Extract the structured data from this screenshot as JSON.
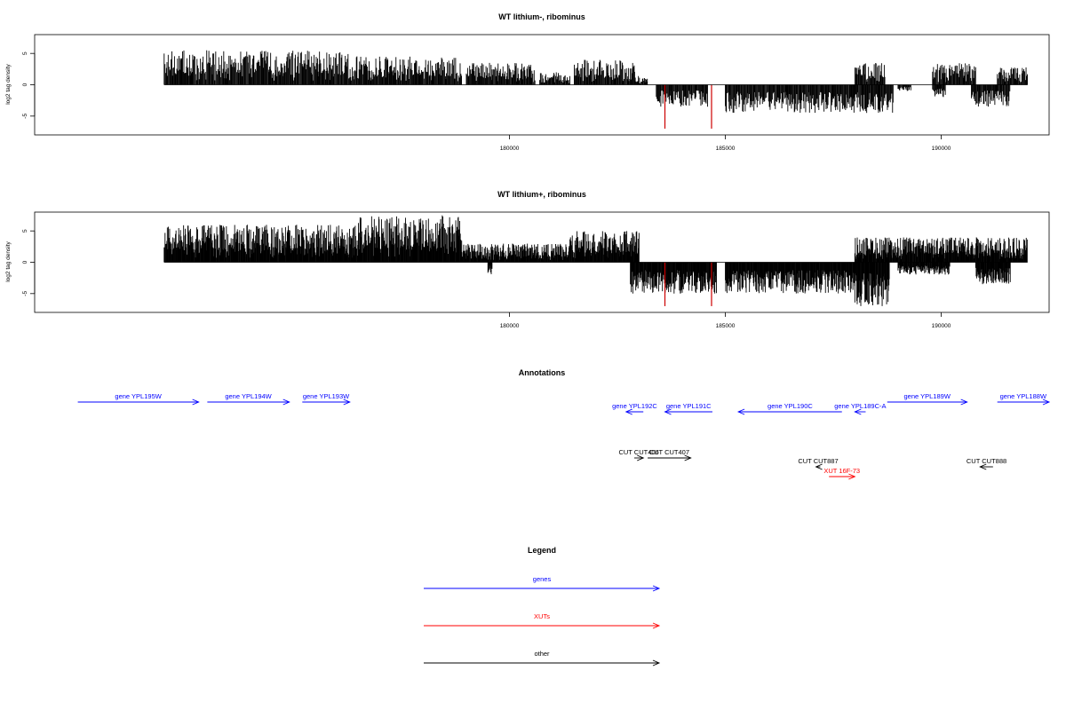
{
  "chart_data": [
    {
      "type": "bar",
      "title": "WT lithium-, ribominus",
      "xlabel": "",
      "ylabel": "log2 tag density",
      "xlim": [
        169000,
        192500
      ],
      "ylim": [
        -8,
        8
      ],
      "x_ticks": [
        180000,
        185000,
        190000
      ],
      "y_ticks": [
        -5,
        0,
        5
      ],
      "highlight_color": "#cc0000",
      "forward_segments": [
        {
          "from": 172000,
          "to": 176500,
          "max": 5.5
        },
        {
          "from": 176500,
          "to": 178900,
          "max": 4.5
        },
        {
          "from": 179000,
          "to": 180600,
          "max": 3.5
        },
        {
          "from": 180700,
          "to": 181400,
          "max": 2.0
        },
        {
          "from": 181500,
          "to": 182900,
          "max": 4.0
        },
        {
          "from": 182900,
          "to": 183200,
          "max": 1.5
        },
        {
          "from": 188000,
          "to": 188700,
          "max": 3.5
        },
        {
          "from": 189800,
          "to": 190800,
          "max": 3.5
        },
        {
          "from": 191300,
          "to": 192000,
          "max": 3.0
        }
      ],
      "reverse_segments": [
        {
          "from": 183400,
          "to": 184600,
          "max": 3.5
        },
        {
          "from": 185000,
          "to": 188000,
          "max": 4.5
        },
        {
          "from": 188000,
          "to": 188900,
          "max": 4.5
        },
        {
          "from": 189000,
          "to": 189300,
          "max": 1.0
        },
        {
          "from": 189800,
          "to": 190100,
          "max": 2.0
        },
        {
          "from": 190700,
          "to": 191600,
          "max": 3.5
        }
      ],
      "highlight_bars": [
        {
          "x": 183600,
          "value": -7.0
        },
        {
          "x": 184680,
          "value": -7.0
        }
      ]
    },
    {
      "type": "bar",
      "title": "WT lithium+, ribominus",
      "xlabel": "",
      "ylabel": "log2 tag density",
      "xlim": [
        169000,
        192500
      ],
      "ylim": [
        -8,
        8
      ],
      "x_ticks": [
        180000,
        185000,
        190000
      ],
      "y_ticks": [
        -5,
        0,
        5
      ],
      "highlight_color": "#cc0000",
      "forward_segments": [
        {
          "from": 172000,
          "to": 176500,
          "max": 6.0
        },
        {
          "from": 176500,
          "to": 178900,
          "max": 7.5
        },
        {
          "from": 178900,
          "to": 181400,
          "max": 3.0
        },
        {
          "from": 181400,
          "to": 183000,
          "max": 5.0
        },
        {
          "from": 188000,
          "to": 188700,
          "max": 4.0
        },
        {
          "from": 188700,
          "to": 192000,
          "max": 4.0
        }
      ],
      "reverse_segments": [
        {
          "from": 179500,
          "to": 179600,
          "max": 2.0
        },
        {
          "from": 182800,
          "to": 184800,
          "max": 5.0
        },
        {
          "from": 185000,
          "to": 188000,
          "max": 5.0
        },
        {
          "from": 188000,
          "to": 188800,
          "max": 7.0
        },
        {
          "from": 189000,
          "to": 190200,
          "max": 2.0
        },
        {
          "from": 190800,
          "to": 191600,
          "max": 3.5
        }
      ],
      "highlight_bars": [
        {
          "x": 183600,
          "value": -7.0
        },
        {
          "x": 184680,
          "value": -7.0
        }
      ]
    }
  ],
  "annotations": {
    "title": "Annotations",
    "colors": {
      "genes": "#0000ff",
      "XUTs": "#ff0000",
      "other": "#000000"
    },
    "features": [
      {
        "label": "gene YPL195W",
        "kind": "genes",
        "from": 170000,
        "to": 172800,
        "strand": "+",
        "row": 0
      },
      {
        "label": "gene YPL194W",
        "kind": "genes",
        "from": 173000,
        "to": 174900,
        "strand": "+",
        "row": 0
      },
      {
        "label": "gene YPL193W",
        "kind": "genes",
        "from": 175200,
        "to": 176300,
        "strand": "+",
        "row": 0
      },
      {
        "label": "gene YPL192C",
        "kind": "genes",
        "from": 182700,
        "to": 183100,
        "strand": "-",
        "row": 1
      },
      {
        "label": "gene YPL191C",
        "kind": "genes",
        "from": 183600,
        "to": 184700,
        "strand": "-",
        "row": 1
      },
      {
        "label": "gene YPL190C",
        "kind": "genes",
        "from": 185300,
        "to": 187700,
        "strand": "-",
        "row": 1
      },
      {
        "label": "gene YPL189C-A",
        "kind": "genes",
        "from": 188000,
        "to": 188250,
        "strand": "-",
        "row": 1
      },
      {
        "label": "gene YPL189W",
        "kind": "genes",
        "from": 188750,
        "to": 190600,
        "strand": "+",
        "row": 0
      },
      {
        "label": "gene YPL188W",
        "kind": "genes",
        "from": 191300,
        "to": 192500,
        "strand": "+",
        "row": 0
      },
      {
        "label": "CUT CUT406",
        "kind": "other",
        "from": 182890,
        "to": 183100,
        "strand": "+",
        "row": 2
      },
      {
        "label": "CUT CUT407",
        "kind": "other",
        "from": 183200,
        "to": 184200,
        "strand": "+",
        "row": 2
      },
      {
        "label": "CUT CUT887",
        "kind": "other",
        "from": 187100,
        "to": 187200,
        "strand": "-",
        "row": 3
      },
      {
        "label": "XUT 16F-73",
        "kind": "XUTs",
        "from": 187400,
        "to": 188000,
        "strand": "+",
        "row": 4
      },
      {
        "label": "CUT CUT888",
        "kind": "other",
        "from": 190900,
        "to": 191200,
        "strand": "-",
        "row": 3
      }
    ]
  },
  "legend": {
    "title": "Legend",
    "items": [
      {
        "label": "genes",
        "color": "#0000ff"
      },
      {
        "label": "XUTs",
        "color": "#ff0000"
      },
      {
        "label": "other",
        "color": "#000000"
      }
    ]
  }
}
